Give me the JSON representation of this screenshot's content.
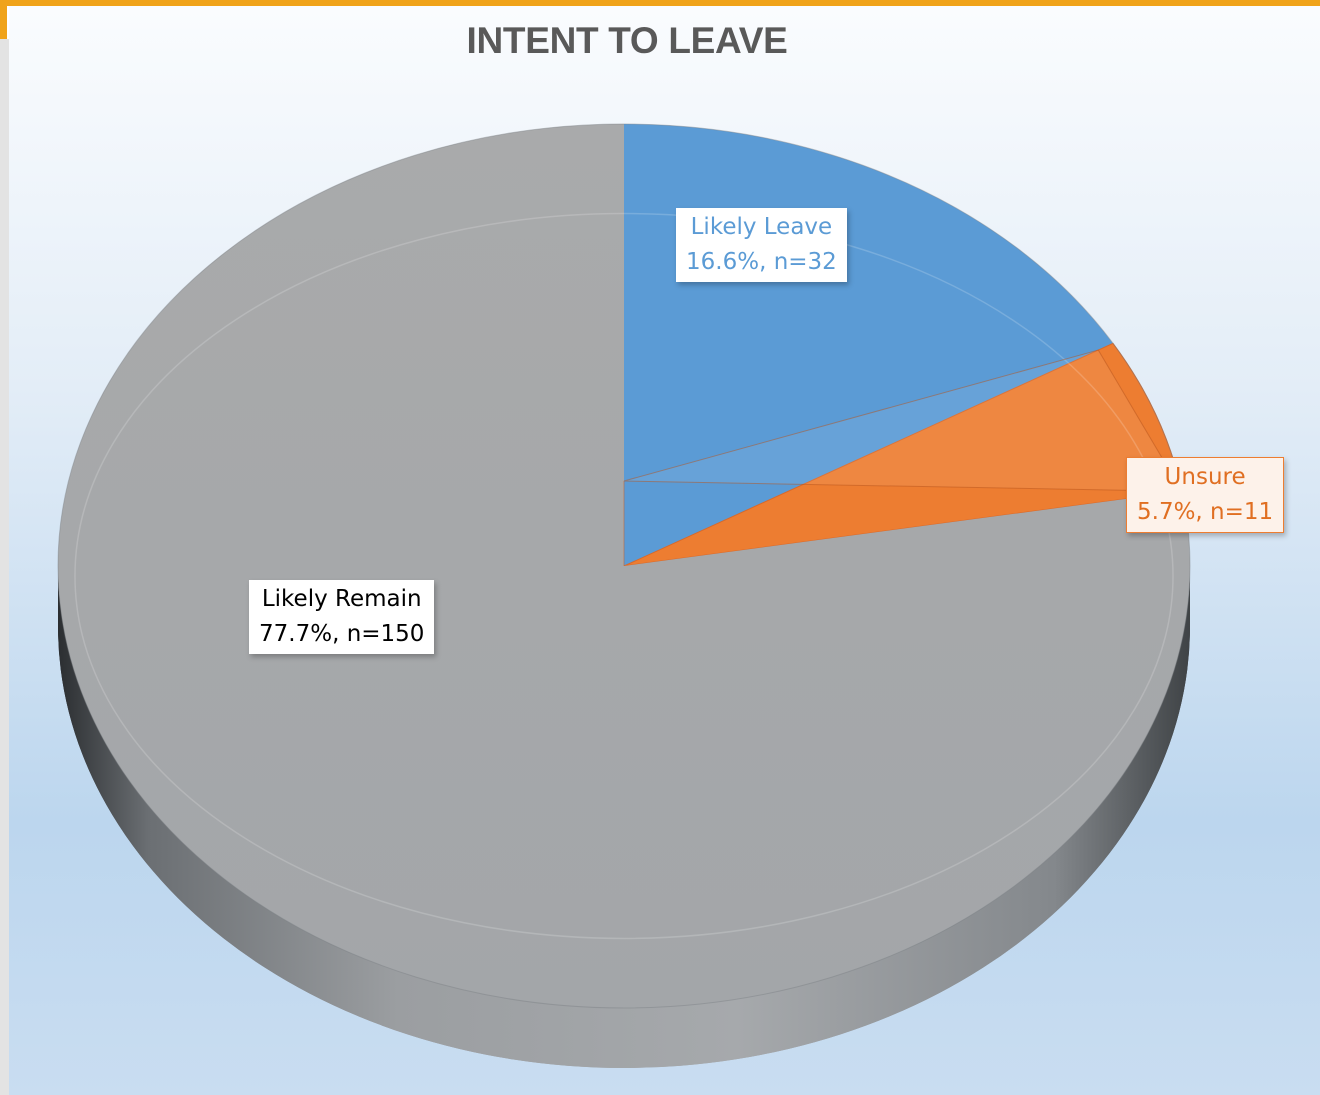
{
  "chart_data": {
    "type": "pie",
    "title": "INTENT TO LEAVE",
    "slices": [
      {
        "name": "Likely Leave",
        "percent": 16.6,
        "n": 32,
        "color": "#5b9bd5",
        "label_line1": "Likely Leave",
        "label_line2": "16.6%, n=32"
      },
      {
        "name": "Unsure",
        "percent": 5.7,
        "n": 11,
        "color": "#ed7d31",
        "label_line1": "Unsure",
        "label_line2": "5.7%, n=11"
      },
      {
        "name": "Likely Remain",
        "percent": 77.7,
        "n": 150,
        "color": "#a5a5a5",
        "label_line1": "Likely Remain",
        "label_line2": "77.7%, n=150"
      }
    ],
    "style": "3d-pie",
    "legend": "none"
  },
  "colors": {
    "accent_bar": "#f0a31a",
    "background_top": "#fafcfe",
    "background_bottom": "#bcd6ee"
  }
}
